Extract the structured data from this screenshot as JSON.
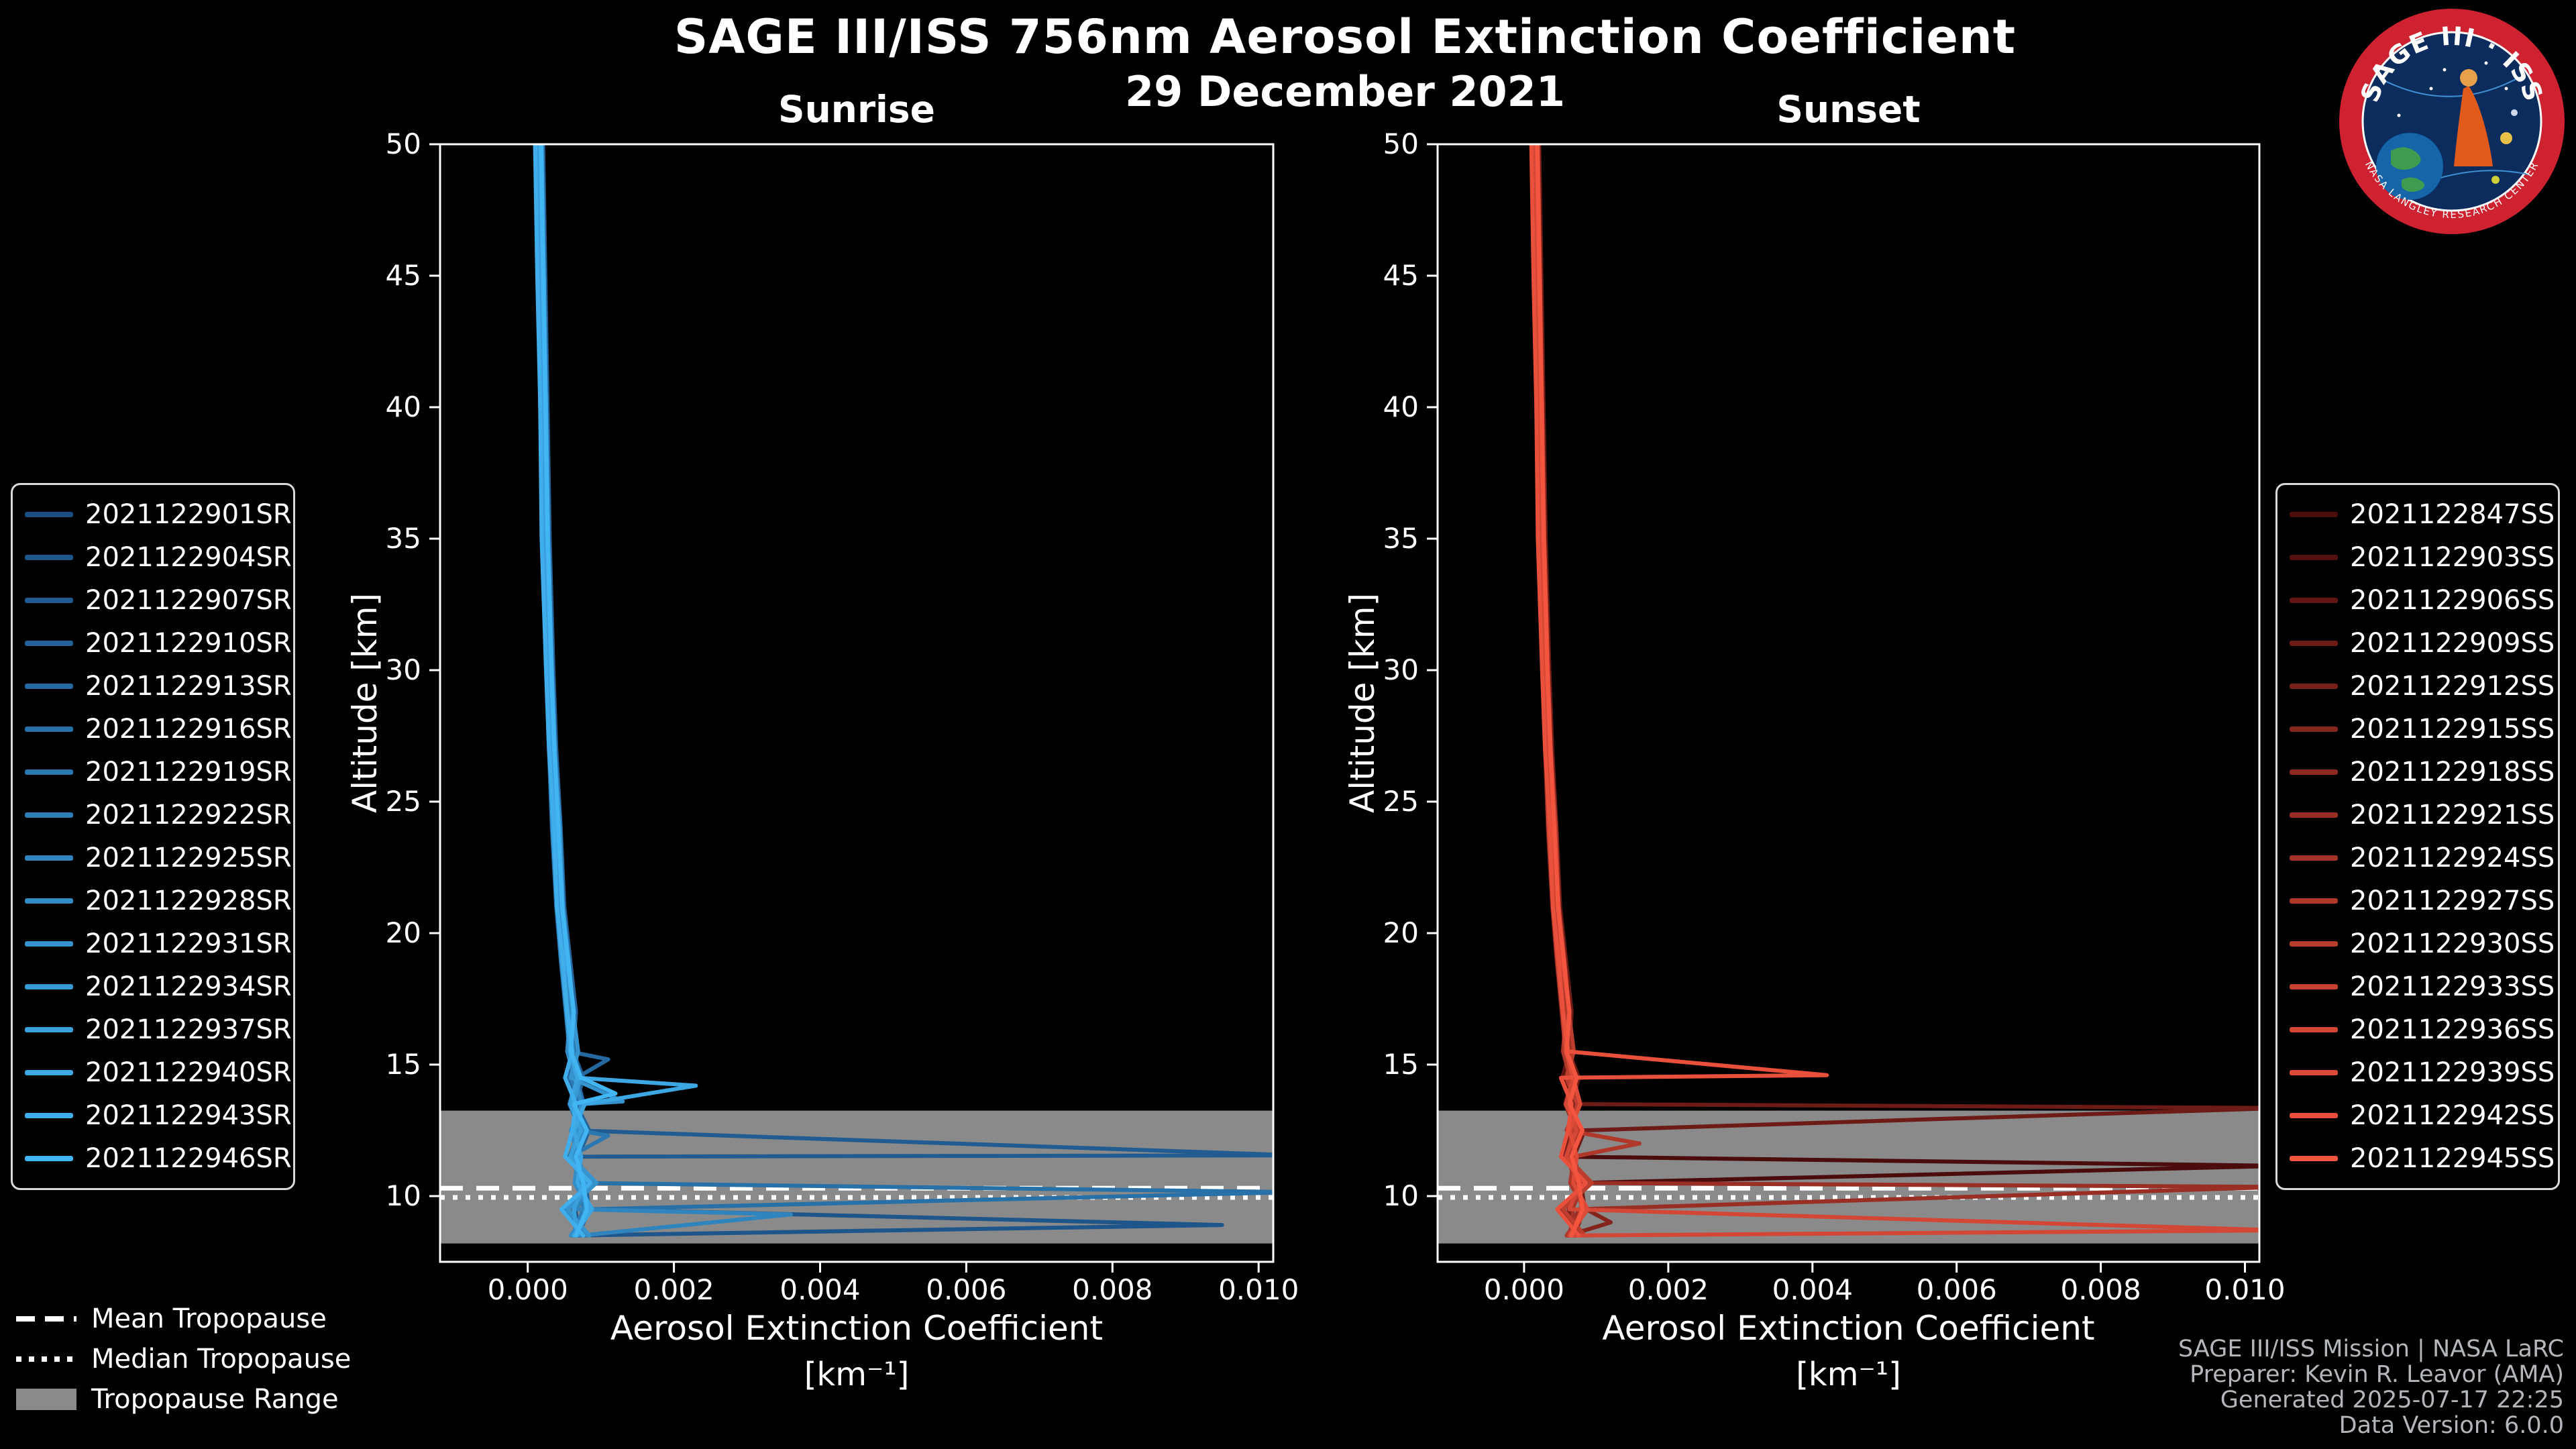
{
  "title": "SAGE III/ISS 756nm Aerosol Extinction Coefficient",
  "subtitle_date": "29 December 2021",
  "colors": {
    "background": "#000000",
    "axis": "#ffffff",
    "band": "#8a8a8a",
    "tropopause_line": "#ffffff",
    "credits_text": "#b3b6ba",
    "logo_ring": "#cf2231",
    "logo_inner": "#0c2c5e"
  },
  "footer": {
    "tropopause_legend": [
      {
        "label": "Mean Tropopause",
        "style": "dashed"
      },
      {
        "label": "Median Tropopause",
        "style": "dotted"
      },
      {
        "label": "Tropopause Range",
        "style": "band"
      }
    ],
    "credits": [
      "SAGE III/ISS Mission | NASA LaRC",
      "Preparer: Kevin R. Leavor (AMA)",
      "Generated 2025-07-17 22:25",
      "Data Version: 6.0.0"
    ]
  },
  "logo": {
    "arc_text": "SAGE III · ISS",
    "ring_text": "NASA LANGLEY RESEARCH CENTER"
  },
  "chart_data": [
    {
      "id": "sunrise",
      "type": "line",
      "title": "Sunrise",
      "xlabel": "Aerosol Extinction Coefficient",
      "xlabel_units": "[km⁻¹]",
      "ylabel": "Altitude [km]",
      "xlim": [
        -0.0012,
        0.0102
      ],
      "ylim": [
        7.5,
        50
      ],
      "xticks": [
        0,
        0.002,
        0.004,
        0.006,
        0.008,
        0.01
      ],
      "xtick_labels": [
        "0.000",
        "0.002",
        "0.004",
        "0.006",
        "0.008",
        "0.010"
      ],
      "yticks": [
        10,
        15,
        20,
        25,
        30,
        35,
        40,
        45,
        50
      ],
      "tropopause": {
        "mean_km": 10.3,
        "median_km": 9.95,
        "range_km": [
          8.2,
          13.25
        ]
      },
      "altitudes_km": [
        50,
        45,
        40,
        35,
        30,
        27,
        24,
        21,
        19,
        17,
        15.5,
        14.5,
        13.5,
        12.5,
        11.5,
        10.5,
        9.5,
        8.5
      ],
      "profiles": [
        [
          0.00015,
          0.00018,
          0.0002,
          0.00024,
          0.00028,
          0.00032,
          0.00036,
          0.00042,
          0.00048,
          0.00055,
          0.0006,
          0.0007,
          0.0006,
          0.00075,
          0.0006,
          0.0008,
          0.00065,
          0.0007
        ],
        [
          0.00016,
          0.00019,
          0.00022,
          0.00025,
          0.0003,
          0.00034,
          0.00038,
          0.00045,
          0.0005,
          0.0006,
          0.00055,
          0.00065,
          0.00075,
          0.0006,
          0.0007,
          0.00065,
          0.00085,
          0.0006
        ],
        [
          0.00014,
          0.00017,
          0.00021,
          0.00023,
          0.00029,
          0.00033,
          0.0004,
          0.00044,
          0.00052,
          0.00058,
          0.00065,
          0.00055,
          0.0007,
          0.00065,
          0.00055,
          0.0009,
          0.0005,
          0.0008
        ],
        [
          0.00017,
          0.0002,
          0.00023,
          0.00026,
          0.00031,
          0.00035,
          0.00041,
          0.00046,
          0.00054,
          0.00062,
          0.00058,
          0.00072,
          0.00062,
          0.0008,
          0.00065,
          0.00075,
          0.0008,
          0.00065
        ]
      ],
      "series": [
        {
          "name": "2021122901SR",
          "color": "#1B4E82",
          "profile": 0,
          "x_offset": 0,
          "spikes": []
        },
        {
          "name": "2021122904SR",
          "color": "#1E558A",
          "profile": 1,
          "x_offset": 2e-05,
          "spikes": [
            [
              8.9,
              0.0095
            ]
          ]
        },
        {
          "name": "2021122907SR",
          "color": "#205C91",
          "profile": 2,
          "x_offset": -2e-05,
          "spikes": [
            [
              11.55,
              0.0105
            ]
          ]
        },
        {
          "name": "2021122910SR",
          "color": "#236399",
          "profile": 3,
          "x_offset": 4e-05,
          "spikes": []
        },
        {
          "name": "2021122913SR",
          "color": "#2569A0",
          "profile": 0,
          "x_offset": -3e-05,
          "spikes": [
            [
              15.2,
              0.0011
            ]
          ]
        },
        {
          "name": "2021122916SR",
          "color": "#2870A8",
          "profile": 1,
          "x_offset": 1e-05,
          "spikes": [
            [
              10.15,
              0.0105
            ]
          ]
        },
        {
          "name": "2021122919SR",
          "color": "#2B77AF",
          "profile": 2,
          "x_offset": 3e-05,
          "spikes": [
            [
              12.3,
              0.0011
            ]
          ]
        },
        {
          "name": "2021122922SR",
          "color": "#2D7EB7",
          "profile": 3,
          "x_offset": -4e-05,
          "spikes": []
        },
        {
          "name": "2021122925SR",
          "color": "#3085BE",
          "profile": 0,
          "x_offset": 2e-05,
          "spikes": [
            [
              9.3,
              0.0036
            ]
          ]
        },
        {
          "name": "2021122928SR",
          "color": "#328CC6",
          "profile": 1,
          "x_offset": -1e-05,
          "spikes": []
        },
        {
          "name": "2021122931SR",
          "color": "#3593CD",
          "profile": 2,
          "x_offset": 4e-05,
          "spikes": [
            [
              13.6,
              0.0013
            ]
          ]
        },
        {
          "name": "2021122934SR",
          "color": "#389AD5",
          "profile": 3,
          "x_offset": 0,
          "spikes": []
        },
        {
          "name": "2021122937SR",
          "color": "#3AA0DC",
          "profile": 0,
          "x_offset": -2e-05,
          "spikes": []
        },
        {
          "name": "2021122940SR",
          "color": "#3DA7E4",
          "profile": 1,
          "x_offset": 3e-05,
          "spikes": [
            [
              14.2,
              0.0023
            ]
          ]
        },
        {
          "name": "2021122943SR",
          "color": "#3FAEEB",
          "profile": 2,
          "x_offset": -4e-05,
          "spikes": []
        },
        {
          "name": "2021122946SR",
          "color": "#42B5F3",
          "profile": 3,
          "x_offset": 1e-05,
          "spikes": [
            [
              13.9,
              0.0012
            ]
          ]
        }
      ]
    },
    {
      "id": "sunset",
      "type": "line",
      "title": "Sunset",
      "xlabel": "Aerosol Extinction Coefficient",
      "xlabel_units": "[km⁻¹]",
      "ylabel": "Altitude [km]",
      "xlim": [
        -0.0012,
        0.0102
      ],
      "ylim": [
        7.5,
        50
      ],
      "xticks": [
        0,
        0.002,
        0.004,
        0.006,
        0.008,
        0.01
      ],
      "xtick_labels": [
        "0.000",
        "0.002",
        "0.004",
        "0.006",
        "0.008",
        "0.010"
      ],
      "yticks": [
        10,
        15,
        20,
        25,
        30,
        35,
        40,
        45,
        50
      ],
      "tropopause": {
        "mean_km": 10.3,
        "median_km": 9.95,
        "range_km": [
          8.2,
          13.25
        ]
      },
      "altitudes_km": [
        50,
        45,
        40,
        35,
        30,
        27,
        24,
        21,
        19,
        17,
        15.5,
        14.5,
        13.5,
        12.5,
        11.5,
        10.5,
        9.5,
        8.5
      ],
      "profiles": [
        [
          0.00015,
          0.00018,
          0.0002,
          0.00024,
          0.00028,
          0.00032,
          0.00036,
          0.00042,
          0.00048,
          0.00055,
          0.0006,
          0.0007,
          0.0006,
          0.00075,
          0.0006,
          0.0008,
          0.00065,
          0.0007
        ],
        [
          0.00016,
          0.00019,
          0.00022,
          0.00025,
          0.0003,
          0.00034,
          0.00038,
          0.00045,
          0.0005,
          0.0006,
          0.00055,
          0.00065,
          0.00075,
          0.0006,
          0.0007,
          0.00065,
          0.00085,
          0.0006
        ],
        [
          0.00014,
          0.00017,
          0.00021,
          0.00023,
          0.00029,
          0.00033,
          0.0004,
          0.00044,
          0.00052,
          0.00058,
          0.00065,
          0.00055,
          0.0007,
          0.00065,
          0.00055,
          0.0009,
          0.0005,
          0.0008
        ],
        [
          0.00017,
          0.0002,
          0.00023,
          0.00026,
          0.00031,
          0.00035,
          0.00041,
          0.00046,
          0.00054,
          0.00062,
          0.00058,
          0.00072,
          0.00062,
          0.0008,
          0.00065,
          0.00075,
          0.0008,
          0.00065
        ]
      ],
      "series": [
        {
          "name": "2021122847SS",
          "color": "#4A0C0C",
          "profile": 0,
          "x_offset": 0,
          "spikes": [
            [
              11.15,
              0.0105
            ]
          ]
        },
        {
          "name": "2021122903SS",
          "color": "#55110F",
          "profile": 1,
          "x_offset": 2e-05,
          "spikes": []
        },
        {
          "name": "2021122906SS",
          "color": "#611613",
          "profile": 2,
          "x_offset": -2e-05,
          "spikes": []
        },
        {
          "name": "2021122909SS",
          "color": "#6C1B16",
          "profile": 3,
          "x_offset": 4e-05,
          "spikes": [
            [
              13.35,
              0.0105
            ]
          ]
        },
        {
          "name": "2021122912SS",
          "color": "#771F1A",
          "profile": 0,
          "x_offset": -3e-05,
          "spikes": []
        },
        {
          "name": "2021122915SS",
          "color": "#83241D",
          "profile": 1,
          "x_offset": 1e-05,
          "spikes": [
            [
              9.0,
              0.0012
            ]
          ]
        },
        {
          "name": "2021122918SS",
          "color": "#8E2920",
          "profile": 2,
          "x_offset": 3e-05,
          "spikes": []
        },
        {
          "name": "2021122921SS",
          "color": "#992E24",
          "profile": 3,
          "x_offset": -4e-05,
          "spikes": [
            [
              10.35,
              0.0105
            ]
          ]
        },
        {
          "name": "2021122924SS",
          "color": "#A53327",
          "profile": 0,
          "x_offset": 2e-05,
          "spikes": []
        },
        {
          "name": "2021122927SS",
          "color": "#B0382B",
          "profile": 1,
          "x_offset": -1e-05,
          "spikes": [
            [
              12.0,
              0.0016
            ]
          ]
        },
        {
          "name": "2021122930SS",
          "color": "#BB3D2E",
          "profile": 2,
          "x_offset": 4e-05,
          "spikes": []
        },
        {
          "name": "2021122933SS",
          "color": "#C74231",
          "profile": 3,
          "x_offset": 0,
          "spikes": []
        },
        {
          "name": "2021122936SS",
          "color": "#D24735",
          "profile": 0,
          "x_offset": -2e-05,
          "spikes": [
            [
              8.7,
              0.0105
            ]
          ]
        },
        {
          "name": "2021122939SS",
          "color": "#DD4B38",
          "profile": 1,
          "x_offset": 3e-05,
          "spikes": []
        },
        {
          "name": "2021122942SS",
          "color": "#E9503C",
          "profile": 2,
          "x_offset": -4e-05,
          "spikes": [
            [
              14.6,
              0.0042
            ]
          ]
        },
        {
          "name": "2021122945SS",
          "color": "#F4553F",
          "profile": 3,
          "x_offset": 1e-05,
          "spikes": []
        }
      ]
    }
  ]
}
